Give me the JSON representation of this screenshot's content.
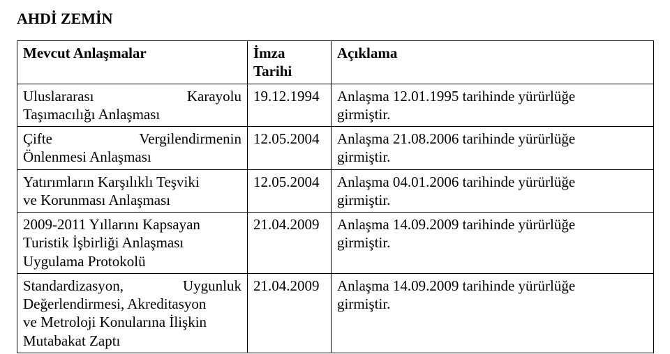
{
  "title": "AHDİ ZEMİN",
  "table": {
    "headers": {
      "col1": "Mevcut Anlaşmalar",
      "col2_line1": "İmza",
      "col2_line2": "Tarihi",
      "col3": "Açıklama"
    },
    "rows": [
      {
        "c1_line1_left": "Uluslararası",
        "c1_line1_right": "Karayolu",
        "c1_line2": "Taşımacılığı Anlaşması",
        "c2": "19.12.1994",
        "c3_line1": "Anlaşma 12.01.1995 tarihinde yürürlüğe",
        "c3_line2": "girmiştir."
      },
      {
        "c1_line1_left": "Çifte",
        "c1_line1_right": "Vergilendirmenin",
        "c1_line2": "Önlenmesi Anlaşması",
        "c2": "12.05.2004",
        "c3_line1": "Anlaşma 21.08.2006 tarihinde yürürlüğe",
        "c3_line2": "girmiştir."
      },
      {
        "c1_line1": "Yatırımların Karşılıklı Teşviki",
        "c1_line2": "ve Korunması Anlaşması",
        "c2": "12.05.2004",
        "c3_line1": "Anlaşma 04.01.2006 tarihinde yürürlüğe",
        "c3_line2": "girmiştir."
      },
      {
        "c1_line1": "2009-2011 Yıllarını Kapsayan",
        "c1_line2": "Turistik İşbirliği Anlaşması",
        "c1_line3": "Uygulama Protokolü",
        "c2": "21.04.2009",
        "c3_line1": "Anlaşma 14.09.2009 tarihinde yürürlüğe",
        "c3_line2": "girmiştir."
      },
      {
        "c1_line1_left": "Standardizasyon,",
        "c1_line1_right": "Uygunluk",
        "c1_line2": "Değerlendirmesi, Akreditasyon",
        "c1_line3": "ve Metroloji Konularına İlişkin",
        "c1_line4": "Mutabakat Zaptı",
        "c2": "21.04.2009",
        "c3_line1": "Anlaşma 14.09.2009 tarihinde yürürlüğe",
        "c3_line2": "girmiştir."
      }
    ]
  }
}
